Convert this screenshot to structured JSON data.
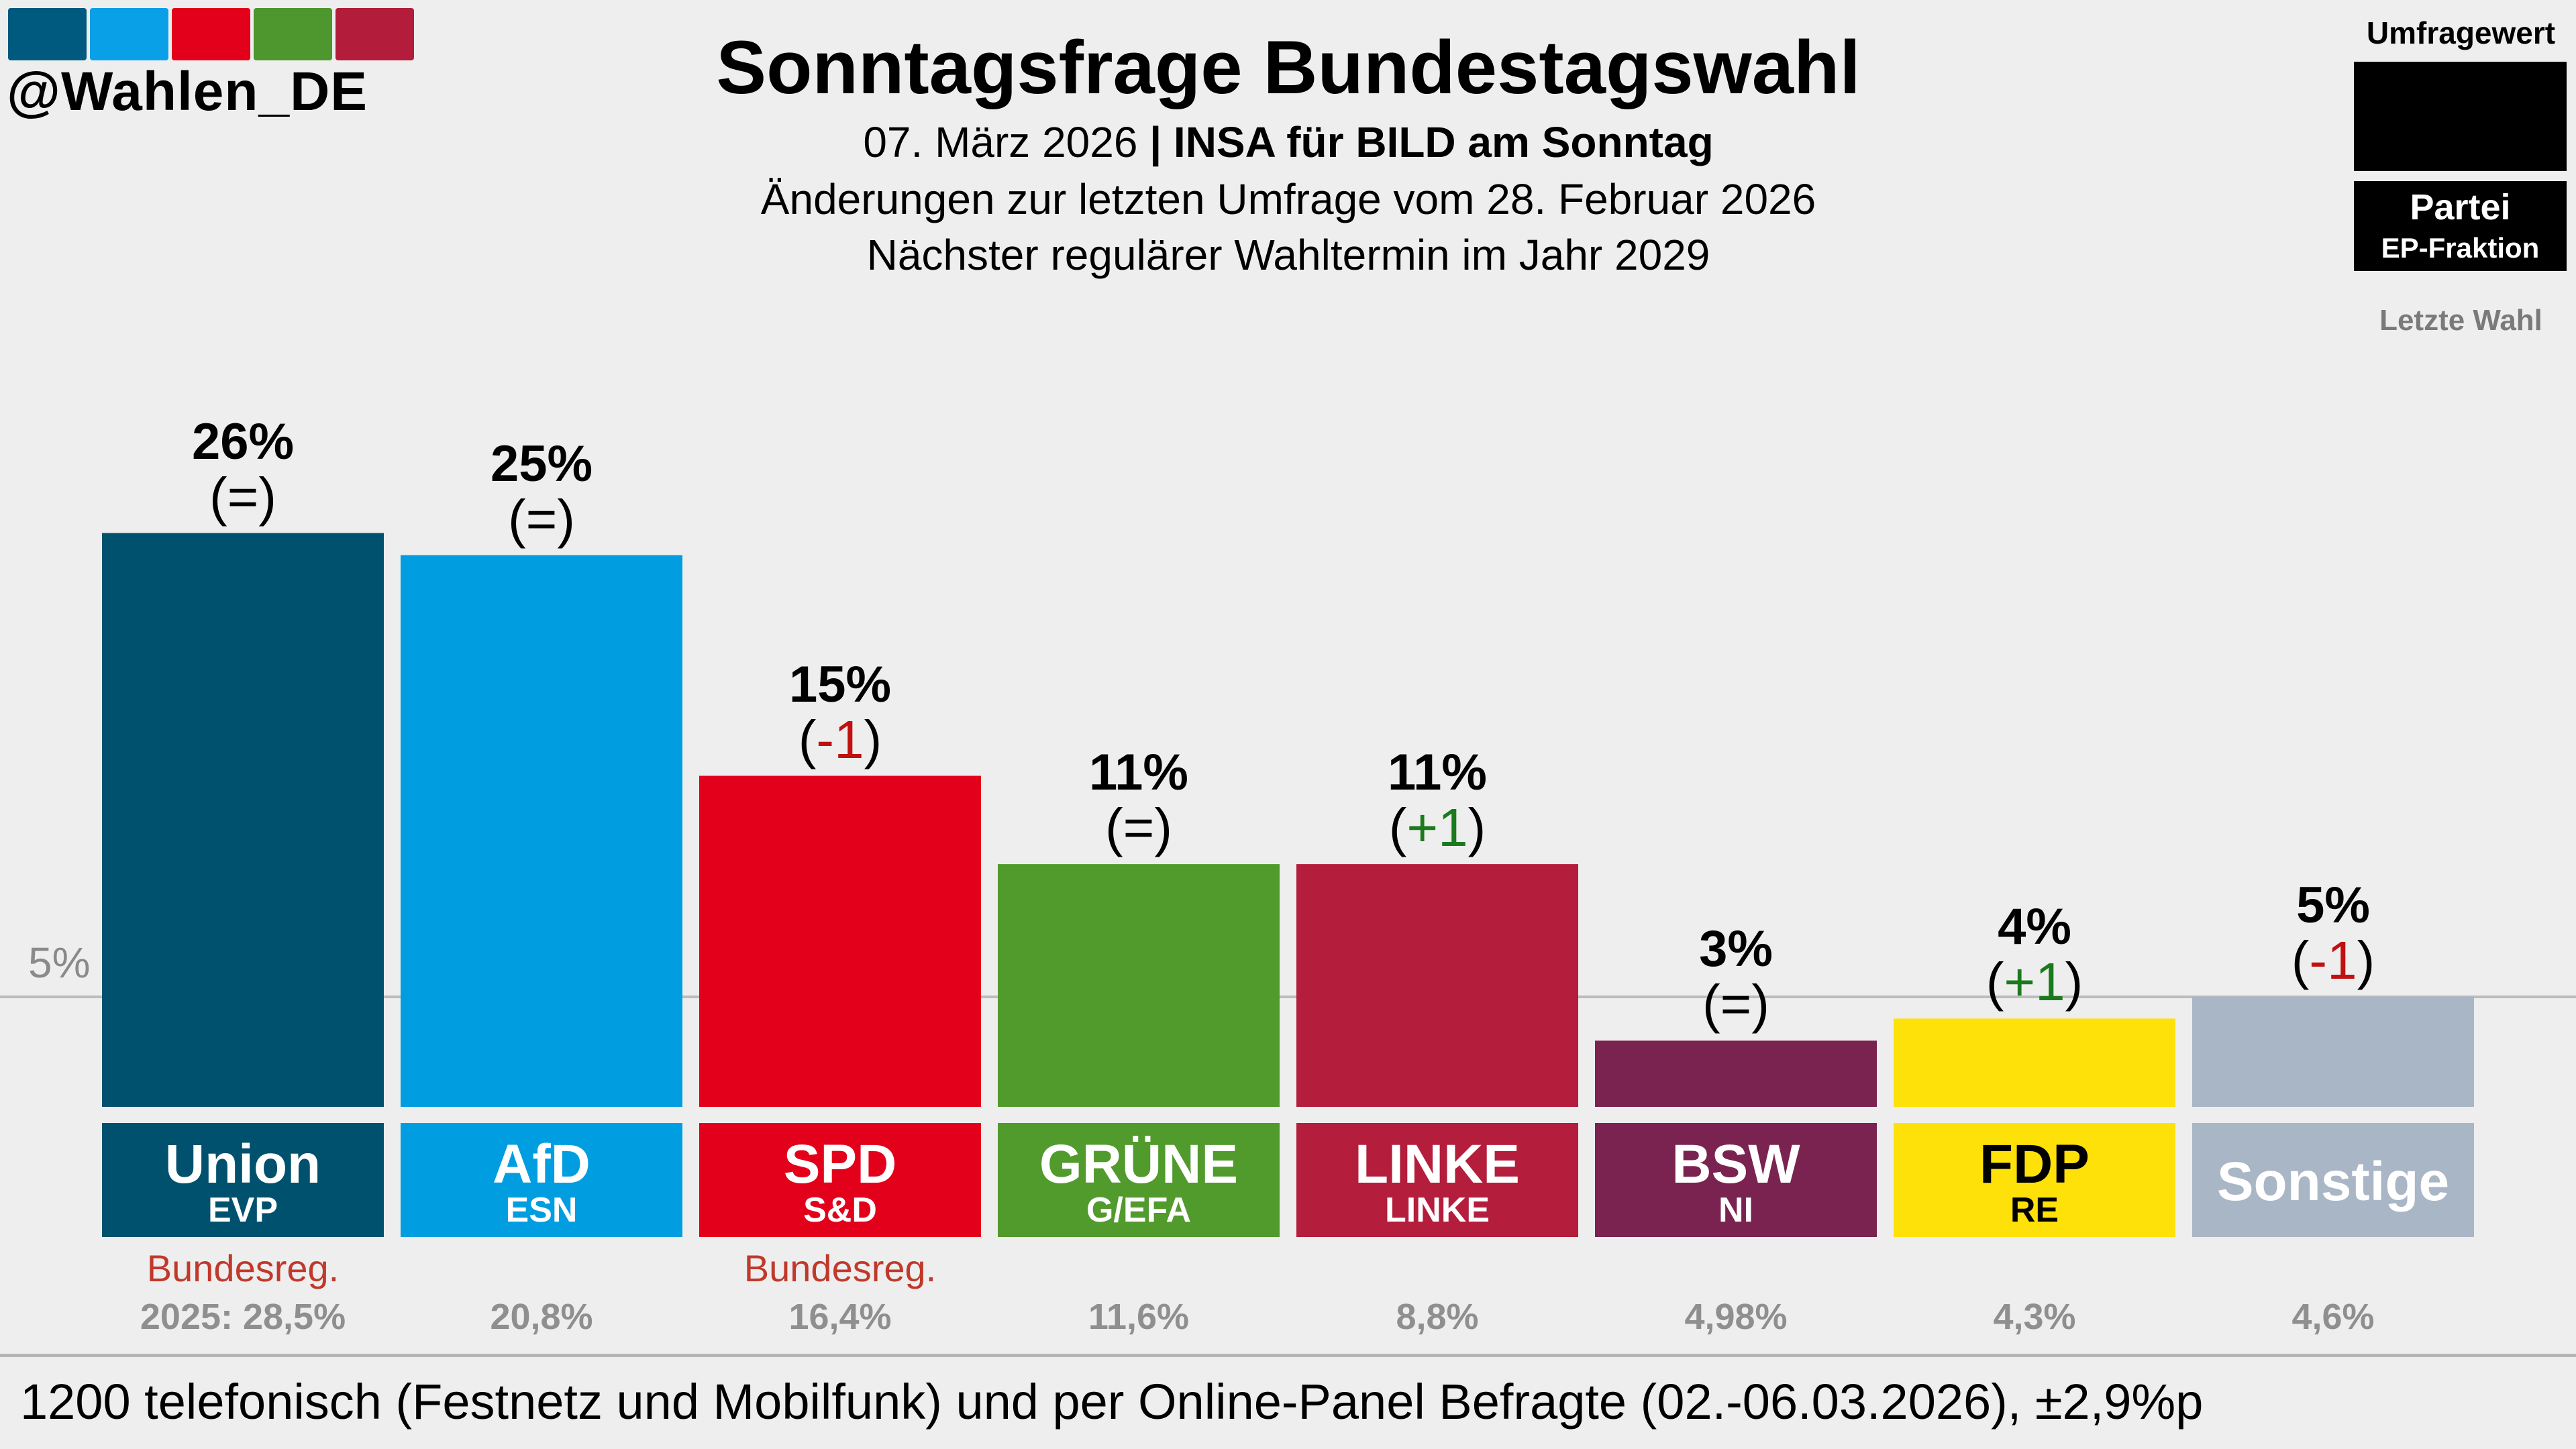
{
  "logo": {
    "text": "@Wahlen_DE",
    "colors": [
      "#005a7f",
      "#0aa0e8",
      "#e3001b",
      "#4e962e",
      "#b31c3a"
    ]
  },
  "header": {
    "title": "Sonntagsfrage Bundestagswahl",
    "date": "07. März 2026",
    "separator": " | ",
    "institute": "INSA für BILD am Sonntag",
    "changes_note": "Änderungen zur letzten Umfrage vom 28. Februar 2026",
    "next_election": "Nächster regulärer Wahltermin im Jahr 2029"
  },
  "legend": {
    "poll_value": "Umfragewert",
    "party": "Partei",
    "ep_group": "EP-Fraktion",
    "last_election": "Letzte Wahl"
  },
  "reference": {
    "label": "5%",
    "value": 5
  },
  "chart_data": {
    "type": "bar",
    "title": "Sonntagsfrage Bundestagswahl",
    "categories": [
      "Union",
      "AfD",
      "SPD",
      "GRÜNE",
      "LINKE",
      "BSW",
      "FDP",
      "Sonstige"
    ],
    "values": [
      26,
      25,
      15,
      11,
      11,
      3,
      4,
      5
    ],
    "value_labels": [
      "26%",
      "25%",
      "15%",
      "11%",
      "11%",
      "3%",
      "4%",
      "5%"
    ],
    "changes": [
      "=",
      "=",
      "-1",
      "=",
      "+1",
      "=",
      "+1",
      "-1"
    ],
    "ep_groups": [
      "EVP",
      "ESN",
      "S&D",
      "G/EFA",
      "LINKE",
      "NI",
      "RE",
      ""
    ],
    "government": [
      "Bundesreg.",
      "",
      "Bundesreg.",
      "",
      "",
      "",
      "",
      ""
    ],
    "last_election": [
      "2025: 28,5%",
      "20,8%",
      "16,4%",
      "11,6%",
      "8,8%",
      "4,98%",
      "4,3%",
      "4,6%"
    ],
    "colors": [
      "#00516e",
      "#009ee0",
      "#e3001b",
      "#519a2c",
      "#b41d3c",
      "#7a2350",
      "#ffe10a",
      "#a9b6c6"
    ],
    "label_colors": [
      "#ffffff",
      "#ffffff",
      "#ffffff",
      "#ffffff",
      "#ffffff",
      "#ffffff",
      "#000000",
      "#ffffff"
    ],
    "reference_line": 5
  },
  "footer": {
    "text": "1200 telefonisch (Festnetz und Mobilfunk) und per Online-Panel Befragte (02.-06.03.2026), ±2,9%p"
  }
}
